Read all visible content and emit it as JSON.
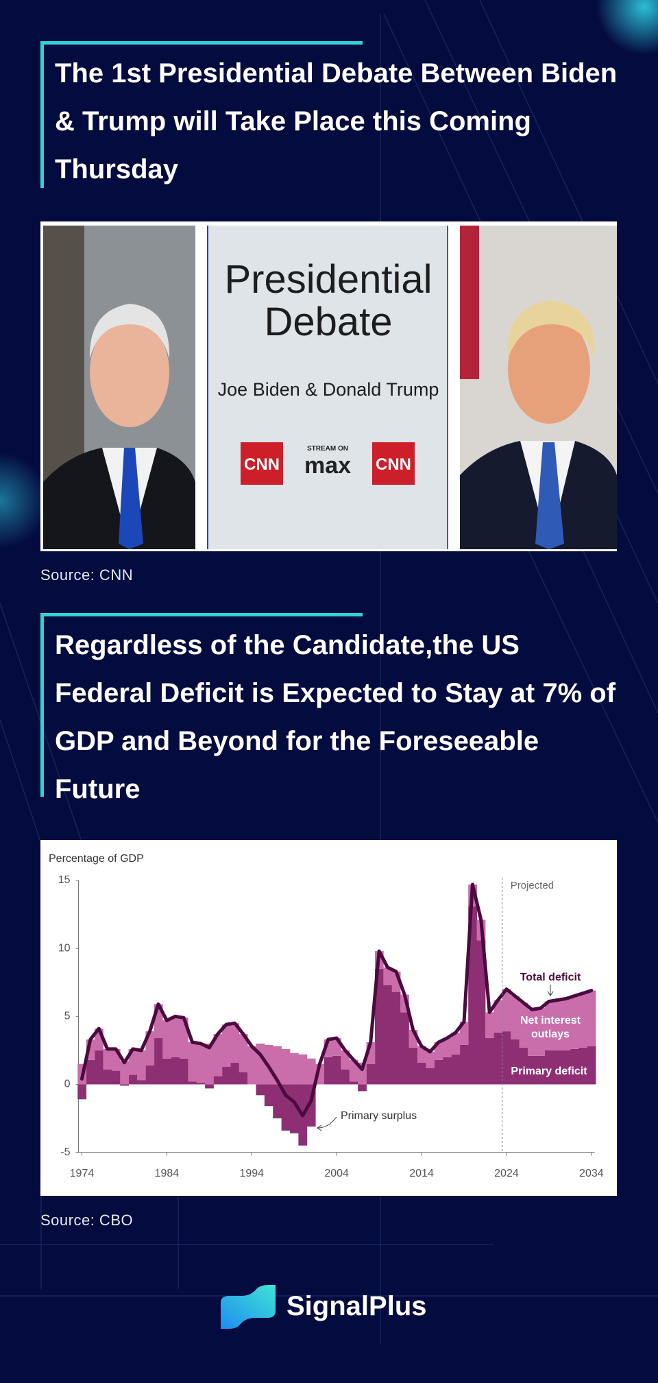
{
  "header": {
    "title": "The 1st Presidential Debate Between Biden & Trump will Take Place this Coming Thursday"
  },
  "image": {
    "title_lines": [
      "Presidential",
      "Debate"
    ],
    "subtitle": "Joe Biden & Donald Trump",
    "stream_label": "STREAM ON",
    "stream_brand": "max",
    "logos": [
      "CNN",
      "CNN"
    ]
  },
  "image_source": "Source: CNN",
  "section": {
    "title": "Regardless of the Candidate,the US Federal Deficit is Expected to Stay at 7% of GDP and Beyond for the Foreseeable Future"
  },
  "chart_data": {
    "type": "bar",
    "stacked": true,
    "y_axis_label": "Percentage of GDP",
    "x": [
      1974,
      1975,
      1976,
      1977,
      1978,
      1979,
      1980,
      1981,
      1982,
      1983,
      1984,
      1985,
      1986,
      1987,
      1988,
      1989,
      1990,
      1991,
      1992,
      1993,
      1994,
      1995,
      1996,
      1997,
      1998,
      1999,
      2000,
      2001,
      2002,
      2003,
      2004,
      2005,
      2006,
      2007,
      2008,
      2009,
      2010,
      2011,
      2012,
      2013,
      2014,
      2015,
      2016,
      2017,
      2018,
      2019,
      2020,
      2021,
      2022,
      2023,
      2024,
      2025,
      2026,
      2027,
      2028,
      2029,
      2030,
      2031,
      2032,
      2033,
      2034
    ],
    "series": [
      {
        "name": "Primary deficit",
        "type": "bar",
        "color": "#8e2f74",
        "values": [
          -1.1,
          1.8,
          2.5,
          1.1,
          1.0,
          -0.1,
          0.7,
          0.3,
          1.4,
          3.4,
          1.9,
          2.0,
          1.9,
          0.2,
          0.1,
          -0.3,
          0.6,
          1.3,
          1.6,
          0.9,
          0.0,
          -0.8,
          -1.6,
          -2.5,
          -3.4,
          -3.6,
          -4.5,
          -3.1,
          0.0,
          2.0,
          2.1,
          1.1,
          0.2,
          -0.5,
          1.5,
          8.5,
          7.3,
          6.8,
          5.3,
          2.7,
          1.6,
          1.2,
          1.8,
          2.0,
          2.2,
          2.9,
          13.1,
          10.6,
          3.4,
          3.8,
          3.9,
          3.3,
          2.7,
          2.1,
          2.1,
          2.5,
          2.5,
          2.5,
          2.6,
          2.7,
          2.8
        ]
      },
      {
        "name": "Net interest outlays",
        "type": "bar",
        "color": "#c96dab",
        "values": [
          1.5,
          1.5,
          1.6,
          1.5,
          1.6,
          1.7,
          1.9,
          2.2,
          2.5,
          2.5,
          2.8,
          3.0,
          3.0,
          2.9,
          2.9,
          3.0,
          3.1,
          3.1,
          2.9,
          2.8,
          2.8,
          3.0,
          2.9,
          2.8,
          2.6,
          2.3,
          2.2,
          1.9,
          1.5,
          1.3,
          1.3,
          1.4,
          1.6,
          1.6,
          1.6,
          1.3,
          1.3,
          1.5,
          1.3,
          1.3,
          1.2,
          1.2,
          1.3,
          1.4,
          1.6,
          1.7,
          1.6,
          1.5,
          1.9,
          2.4,
          3.1,
          3.2,
          3.3,
          3.4,
          3.5,
          3.6,
          3.7,
          3.8,
          3.9,
          4.0,
          4.1
        ]
      },
      {
        "name": "Total deficit",
        "type": "line",
        "color": "#4a0b3e",
        "values": [
          0.4,
          3.3,
          4.1,
          2.6,
          2.6,
          1.6,
          2.6,
          2.5,
          3.9,
          5.9,
          4.7,
          5.0,
          4.9,
          3.1,
          3.0,
          2.7,
          3.7,
          4.4,
          4.5,
          3.7,
          2.8,
          2.2,
          1.3,
          0.3,
          -0.8,
          -1.3,
          -2.3,
          -1.2,
          1.5,
          3.3,
          3.4,
          2.5,
          1.8,
          1.1,
          3.1,
          9.8,
          8.6,
          8.3,
          6.6,
          4.0,
          2.8,
          2.4,
          3.1,
          3.4,
          3.8,
          4.6,
          14.7,
          12.1,
          5.3,
          6.2,
          7.0,
          6.5,
          6.0,
          5.5,
          5.6,
          6.1,
          6.2,
          6.3,
          6.5,
          6.7,
          6.9
        ]
      }
    ],
    "xlim": [
      1973.6,
      2034.4
    ],
    "xticks": [
      1974,
      1984,
      1994,
      2004,
      2014,
      2024,
      2034
    ],
    "ylim": [
      -5,
      15
    ],
    "yticks": [
      -5,
      0,
      5,
      10,
      15
    ],
    "projection": {
      "label": "Projected",
      "x": 2023.5
    },
    "annotations": [
      {
        "text": "Primary surplus"
      }
    ]
  },
  "chart_source": "Source: CBO",
  "footer": {
    "brand": "SignalPlus"
  }
}
